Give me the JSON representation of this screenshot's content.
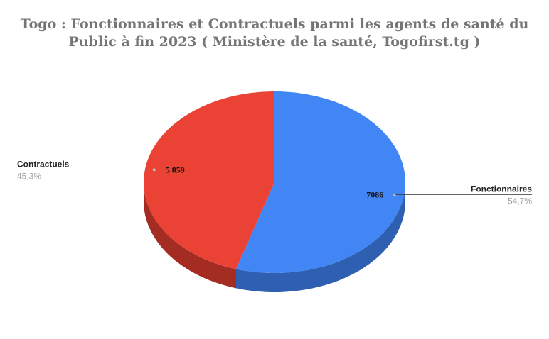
{
  "chart_data": {
    "type": "pie",
    "title_lines": [
      "Togo : Fonctionnaires et Contractuels parmi les agents de santé du",
      "Public à fin 2023 ( Ministère de la santé, Togofirst.tg )"
    ],
    "slices": [
      {
        "label": "Fonctionnaires",
        "value": 7086,
        "value_label": "7086",
        "percent_label": "54,7%",
        "color": "#4285f4",
        "side_color": "#2f5fb0"
      },
      {
        "label": "Contractuels",
        "value": 5859,
        "value_label": "5 859",
        "percent_label": "45,3%",
        "color": "#ea4335",
        "side_color": "#a52c22"
      }
    ],
    "style": "3d",
    "legend": "none",
    "leader_line_color": "#333333"
  }
}
